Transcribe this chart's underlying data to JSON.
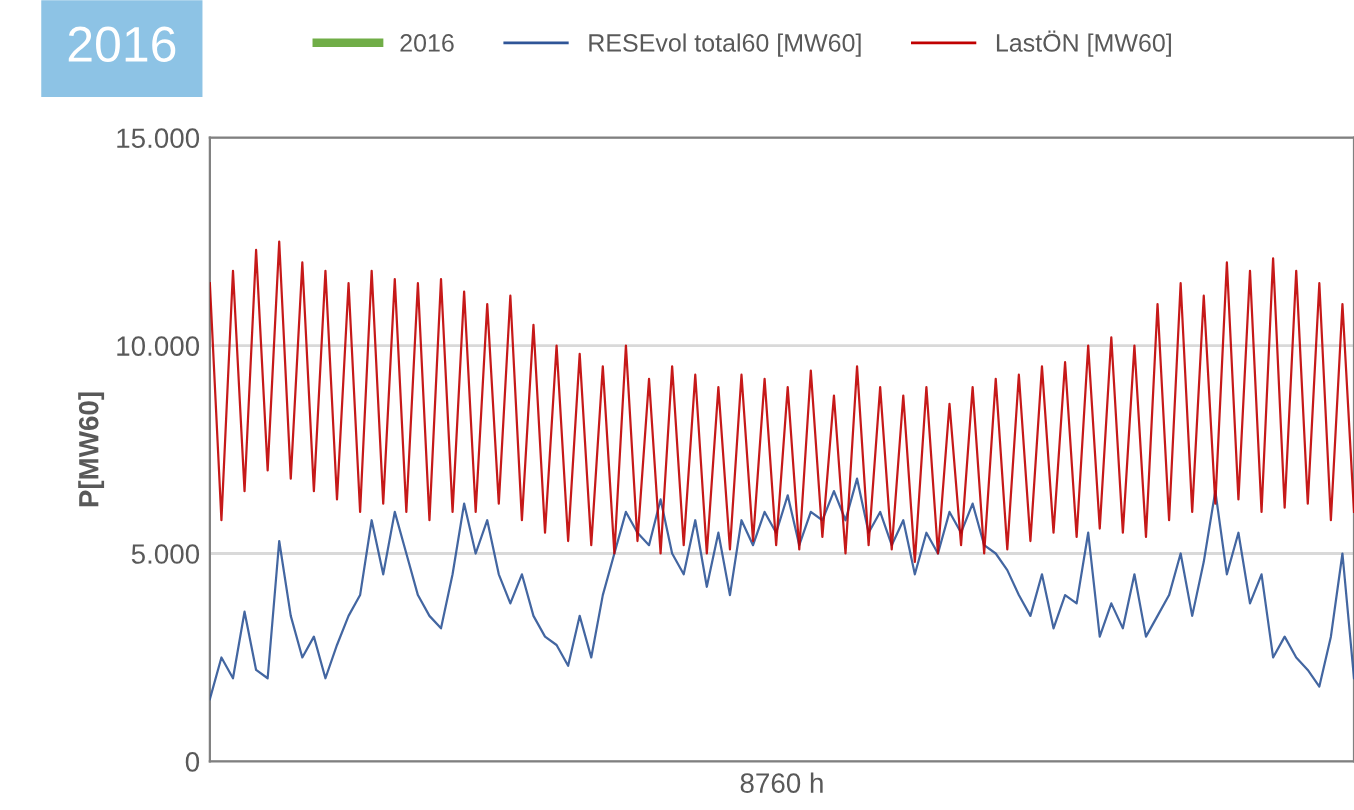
{
  "chart_data": {
    "type": "line",
    "title": "2016",
    "ylabel": "P[MW60]",
    "xlabel": "8760 h",
    "categories": [
      null,
      null,
      null,
      null,
      null,
      null,
      null,
      null,
      null,
      null,
      null,
      null,
      null,
      null,
      null,
      null,
      null,
      null,
      null,
      null,
      null,
      null,
      null,
      null,
      null,
      null,
      null,
      null,
      null,
      null,
      null,
      null,
      null,
      null,
      null,
      null,
      null,
      null,
      null,
      null,
      null,
      null,
      null,
      null,
      null,
      null,
      null,
      null,
      null,
      null,
      null,
      null,
      null,
      null,
      null,
      null,
      null,
      null,
      null,
      null,
      null,
      null,
      null,
      null,
      null,
      null,
      null,
      null,
      null,
      null,
      null,
      null,
      null,
      null,
      null,
      null,
      null,
      null,
      null,
      null,
      null,
      null,
      null,
      null,
      null,
      null,
      null,
      null,
      null,
      null,
      null,
      null,
      null,
      null,
      null,
      null,
      null,
      null,
      null,
      null
    ],
    "ylim": [
      0,
      15000
    ],
    "yticks": [
      {
        "value": 0,
        "label": "0"
      },
      {
        "value": 5000,
        "label": "5.000"
      },
      {
        "value": 10000,
        "label": "10.000"
      },
      {
        "value": 15000,
        "label": "15.000"
      }
    ],
    "grid": "y",
    "legend": "top",
    "tick_labels": "y",
    "series": [
      {
        "name": "2016",
        "color": "#70ad47",
        "values": [
          null,
          null,
          null,
          null,
          null,
          null,
          null,
          null,
          null,
          null,
          null,
          null,
          null,
          null,
          null,
          null,
          null,
          null,
          null,
          null,
          null,
          null,
          null,
          null,
          null,
          null,
          null,
          null,
          null,
          null,
          null,
          null,
          null,
          null,
          null,
          null,
          null,
          null,
          null,
          null,
          null,
          null,
          null,
          null,
          null,
          null,
          null,
          null,
          null,
          null,
          null,
          null,
          null,
          null,
          null,
          null,
          null,
          null,
          null,
          null,
          null,
          null,
          null,
          null,
          null,
          null,
          null,
          null,
          null,
          null,
          null,
          null,
          null,
          null,
          null,
          null,
          null,
          null,
          null,
          null,
          null,
          null,
          null,
          null,
          null,
          null,
          null,
          null,
          null,
          null,
          null,
          null,
          null,
          null,
          null,
          null,
          null,
          null,
          null,
          null
        ]
      },
      {
        "name": "RESEvol total60 [MW60]",
        "color": "#2f5597",
        "values": [
          1500,
          2500,
          2000,
          3600,
          2200,
          2000,
          5300,
          3500,
          2500,
          3000,
          2000,
          2800,
          3500,
          4000,
          5800,
          4500,
          6000,
          5000,
          4000,
          3500,
          3200,
          4500,
          6200,
          5000,
          5800,
          4500,
          3800,
          4500,
          3500,
          3000,
          2800,
          2300,
          3500,
          2500,
          4000,
          5000,
          6000,
          5500,
          5200,
          6300,
          5000,
          4500,
          5800,
          4200,
          5500,
          4000,
          5800,
          5200,
          6000,
          5500,
          6400,
          5200,
          6000,
          5800,
          6500,
          5800,
          6800,
          5500,
          6000,
          5200,
          5800,
          4500,
          5500,
          5000,
          6000,
          5500,
          6200,
          5200,
          5000,
          4600,
          4000,
          3500,
          4500,
          3200,
          4000,
          3800,
          5500,
          3000,
          3800,
          3200,
          4500,
          3000,
          3500,
          4000,
          5000,
          3500,
          4800,
          6500,
          4500,
          5500,
          3800,
          4500,
          2500,
          3000,
          2500,
          2200,
          1800,
          3000,
          5000,
          2000
        ]
      },
      {
        "name": "LastÖN [MW60]",
        "color": "#c00000",
        "values": [
          11500,
          5800,
          11800,
          6500,
          12300,
          7000,
          12500,
          6800,
          12000,
          6500,
          11800,
          6300,
          11500,
          6000,
          11800,
          6200,
          11600,
          6000,
          11500,
          5800,
          11600,
          6000,
          11300,
          6000,
          11000,
          6200,
          11200,
          5800,
          10500,
          5500,
          10000,
          5300,
          9800,
          5200,
          9500,
          5000,
          10000,
          5300,
          9200,
          5000,
          9500,
          5200,
          9300,
          5000,
          9000,
          5100,
          9300,
          5300,
          9200,
          5200,
          9000,
          5100,
          9400,
          5400,
          8800,
          5000,
          9500,
          5200,
          9000,
          5100,
          8800,
          4800,
          9000,
          5000,
          8600,
          5200,
          9000,
          5000,
          9200,
          5100,
          9300,
          5300,
          9500,
          5500,
          9600,
          5400,
          10000,
          5600,
          10200,
          5500,
          10000,
          5400,
          11000,
          5800,
          11500,
          6000,
          11200,
          6200,
          12000,
          6300,
          11800,
          6000,
          12100,
          6100,
          11800,
          6200,
          11500,
          5800,
          11000,
          6000
        ]
      }
    ]
  }
}
